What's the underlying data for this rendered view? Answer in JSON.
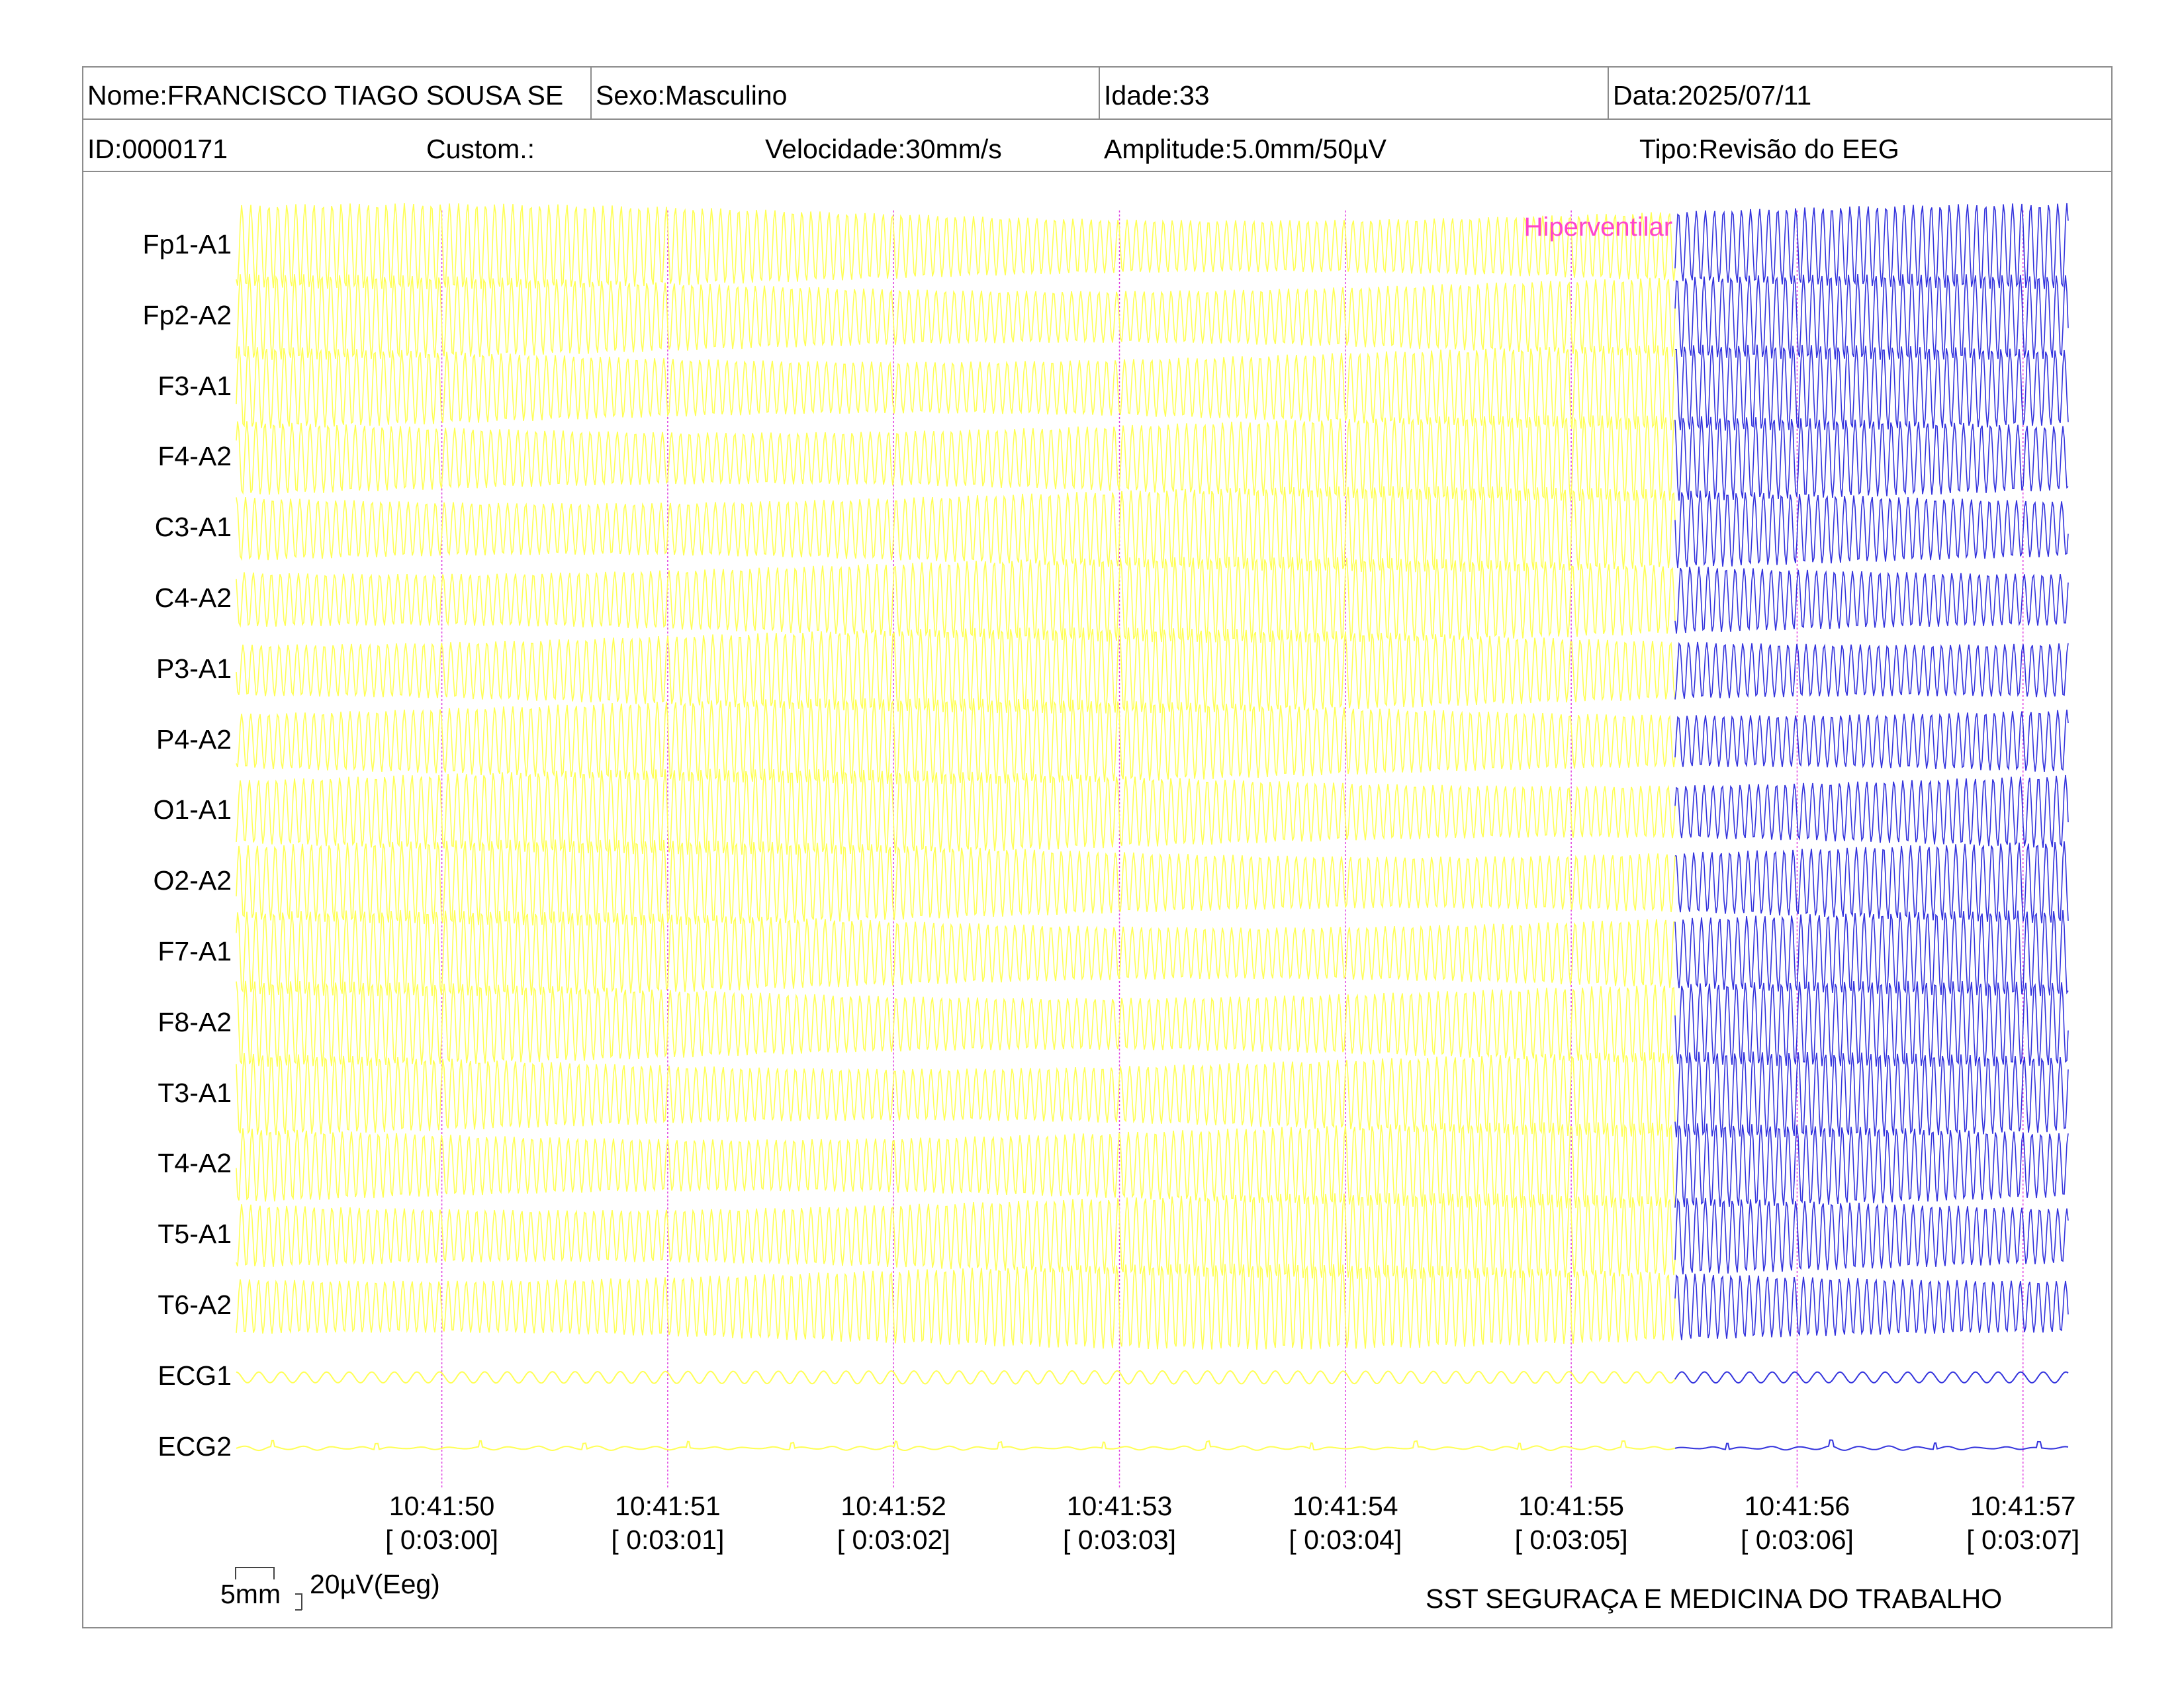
{
  "header": {
    "name": "Nome:FRANCISCO TIAGO SOUSA SE",
    "sex": "Sexo:Masculino",
    "age": "Idade:33",
    "date": "Data:2025/07/11",
    "id": "ID:0000171",
    "custom": "Custom.:",
    "speed": "Velocidade:30mm/s",
    "amplitude": "Amplitude:5.0mm/50µV",
    "type": "Tipo:Revisão do EEG"
  },
  "footer": {
    "scale_time": "5mm",
    "scale_amp": "20µV(Eeg)",
    "company": "SST SEGURAÇA E MEDICINA DO TRABALHO"
  },
  "colors": {
    "trace_before": "#ffff55",
    "trace_after": "#3333dd",
    "event_marker": "#ff44cc",
    "grid_marker": "#e040e0",
    "border": "#8c8c8c"
  },
  "chart_data": {
    "type": "line",
    "channels": [
      "Fp1-A1",
      "Fp2-A2",
      "F3-A1",
      "F4-A2",
      "C3-A1",
      "C4-A2",
      "P3-A1",
      "P4-A2",
      "O1-A1",
      "O2-A2",
      "F7-A1",
      "F8-A2",
      "T3-A1",
      "T4-A2",
      "T5-A1",
      "T6-A2",
      "ECG1",
      "ECG2"
    ],
    "time_ticks": [
      {
        "clock": "10:41:50",
        "elapsed": "[ 0:03:00]"
      },
      {
        "clock": "10:41:51",
        "elapsed": "[ 0:03:01]"
      },
      {
        "clock": "10:41:52",
        "elapsed": "[ 0:03:02]"
      },
      {
        "clock": "10:41:53",
        "elapsed": "[ 0:03:03]"
      },
      {
        "clock": "10:41:54",
        "elapsed": "[ 0:03:04]"
      },
      {
        "clock": "10:41:55",
        "elapsed": "[ 0:03:05]"
      },
      {
        "clock": "10:41:56",
        "elapsed": "[ 0:03:06]"
      },
      {
        "clock": "10:41:57",
        "elapsed": "[ 0:03:07]"
      }
    ],
    "xrange_seconds": [
      -0.91,
      7.2
    ],
    "event": {
      "label": "Hiperventilar",
      "at_seconds": 5.46
    },
    "eeg_frequency_hz": 25,
    "ecg1_frequency_hz": 10,
    "grid": false
  }
}
